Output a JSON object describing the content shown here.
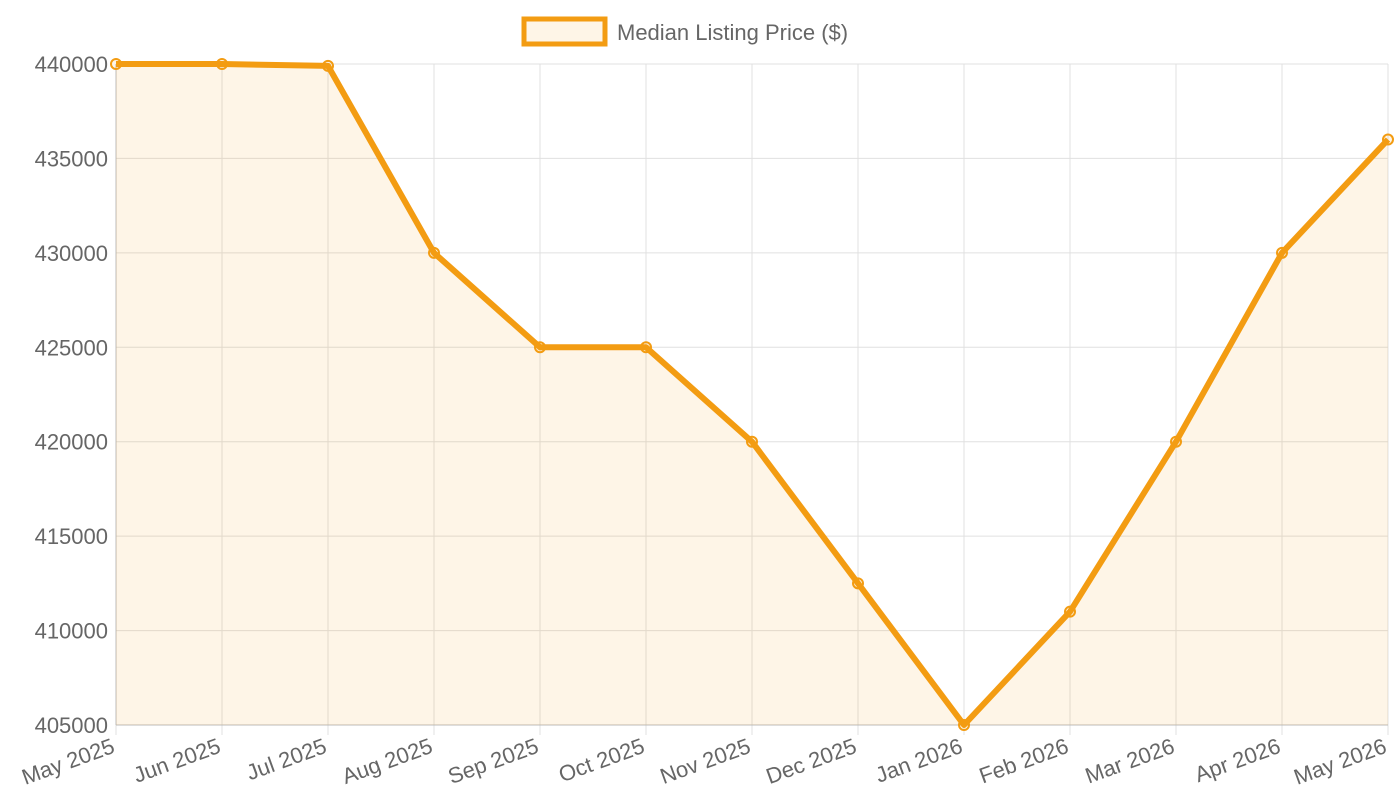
{
  "chart_data": {
    "type": "line",
    "categories": [
      "May 2025",
      "Jun 2025",
      "Jul 2025",
      "Aug 2025",
      "Sep 2025",
      "Oct 2025",
      "Nov 2025",
      "Dec 2025",
      "Jan 2026",
      "Feb 2026",
      "Mar 2026",
      "Apr 2026",
      "May 2026"
    ],
    "series": [
      {
        "name": "Median Listing Price ($)",
        "color": "#f39c12",
        "fill": "rgba(243,156,18,0.1)",
        "values": [
          440000,
          440000,
          439900,
          430000,
          425000,
          425000,
          420000,
          412500,
          405000,
          411000,
          420000,
          430000,
          436000
        ]
      }
    ],
    "ylim": [
      405000,
      440000
    ],
    "yticks": [
      405000,
      410000,
      415000,
      420000,
      425000,
      430000,
      435000,
      440000
    ],
    "grid": true,
    "legend": "top"
  }
}
